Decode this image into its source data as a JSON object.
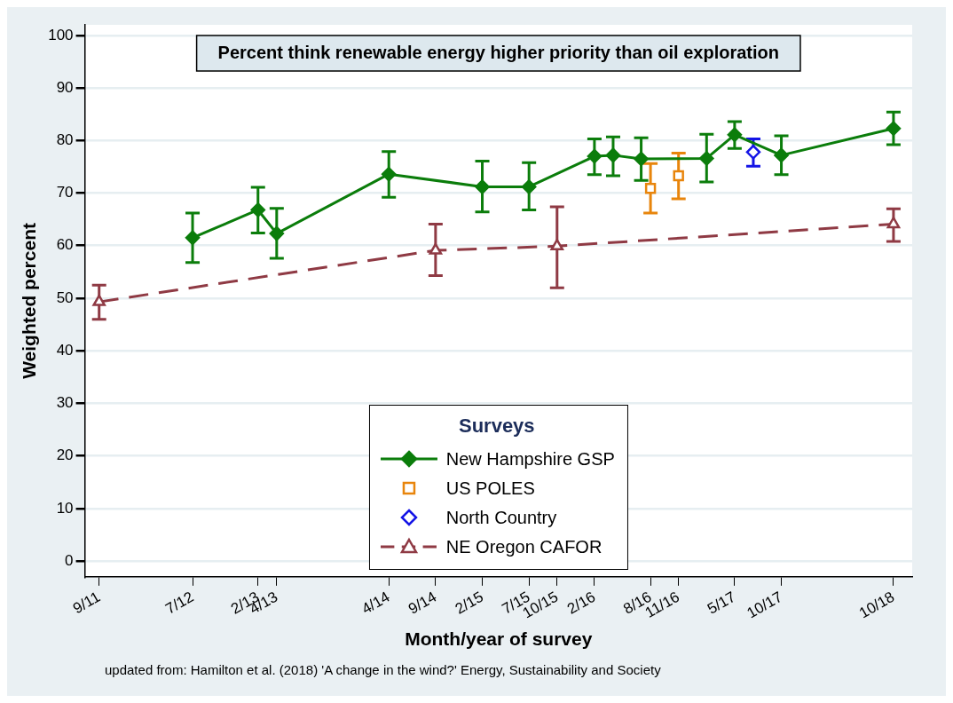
{
  "chart_data": {
    "type": "line",
    "title": "Percent think renewable energy higher priority than oil exploration",
    "xlabel": "Month/year of survey",
    "ylabel": "Weighted percent",
    "legend_title": "Surveys",
    "legend": "bottom",
    "grid": "y",
    "annotations": [
      "updated from:  Hamilton et al. (2018)  'A change in the wind?'  Energy, Sustainability and Society"
    ],
    "xlim": [
      "2011-07-15",
      "2018-12-01"
    ],
    "xticks": [
      {
        "value": "2011-09",
        "label": "9/11"
      },
      {
        "value": "2012-07",
        "label": "7/12"
      },
      {
        "value": "2013-02",
        "label": "2/13"
      },
      {
        "value": "2013-04",
        "label": "4/13"
      },
      {
        "value": "2014-04",
        "label": "4/14"
      },
      {
        "value": "2014-09",
        "label": "9/14"
      },
      {
        "value": "2015-02",
        "label": "2/15"
      },
      {
        "value": "2015-07",
        "label": "7/15"
      },
      {
        "value": "2015-10",
        "label": "10/15"
      },
      {
        "value": "2016-02",
        "label": "2/16"
      },
      {
        "value": "2016-08",
        "label": "8/16"
      },
      {
        "value": "2016-11",
        "label": "11/16"
      },
      {
        "value": "2017-05",
        "label": "5/17"
      },
      {
        "value": "2017-10",
        "label": "10/17"
      },
      {
        "value": "2018-10",
        "label": "10/18"
      }
    ],
    "ylim": [
      -3,
      102
    ],
    "yticks": [
      0,
      10,
      20,
      30,
      40,
      50,
      60,
      70,
      80,
      90,
      100
    ],
    "series": [
      {
        "name": "New Hampshire GSP",
        "type": "line",
        "marker": "diamond",
        "line_style": "solid",
        "color": "#0b7d0b",
        "x": [
          "2012-07",
          "2013-02",
          "2013-04",
          "2014-04",
          "2015-02",
          "2015-07",
          "2016-02",
          "2016-04",
          "2016-07",
          "2017-02",
          "2017-05",
          "2017-10",
          "2018-10"
        ],
        "values": [
          61.5,
          66.8,
          62.3,
          73.6,
          71.2,
          71.2,
          77.0,
          77.2,
          76.5,
          76.6,
          81.1,
          77.2,
          82.3
        ],
        "errors": [
          [
            56.8,
            66.2
          ],
          [
            62.4,
            71.1
          ],
          [
            57.6,
            67.1
          ],
          [
            69.2,
            77.9
          ],
          [
            66.4,
            76.1
          ],
          [
            66.8,
            75.8
          ],
          [
            73.5,
            80.3
          ],
          [
            73.3,
            80.7
          ],
          [
            72.4,
            80.5
          ],
          [
            72.1,
            81.2
          ],
          [
            78.5,
            83.6
          ],
          [
            73.5,
            80.9
          ],
          [
            79.2,
            85.4
          ]
        ]
      },
      {
        "name": "US POLES",
        "type": "scatter",
        "marker": "square",
        "color": "#e8850c",
        "x": [
          "2016-08",
          "2016-11"
        ],
        "values": [
          70.9,
          73.3
        ],
        "errors": [
          [
            66.2,
            75.6
          ],
          [
            68.9,
            77.6
          ]
        ]
      },
      {
        "name": "North Country",
        "type": "scatter",
        "marker": "diamond",
        "color": "#1414e6",
        "x": [
          "2017-07"
        ],
        "values": [
          77.8
        ],
        "errors": [
          [
            75.1,
            80.3
          ]
        ]
      },
      {
        "name": "NE Oregon CAFOR",
        "type": "line",
        "marker": "triangle",
        "line_style": "dashed",
        "color": "#8f3a44",
        "x": [
          "2011-09",
          "2014-09",
          "2015-10",
          "2018-10"
        ],
        "values": [
          49.3,
          59.1,
          59.9,
          64.1
        ],
        "errors": [
          [
            46.0,
            52.5
          ],
          [
            54.3,
            64.1
          ],
          [
            52.0,
            67.4
          ],
          [
            60.8,
            67.0
          ]
        ]
      }
    ]
  }
}
